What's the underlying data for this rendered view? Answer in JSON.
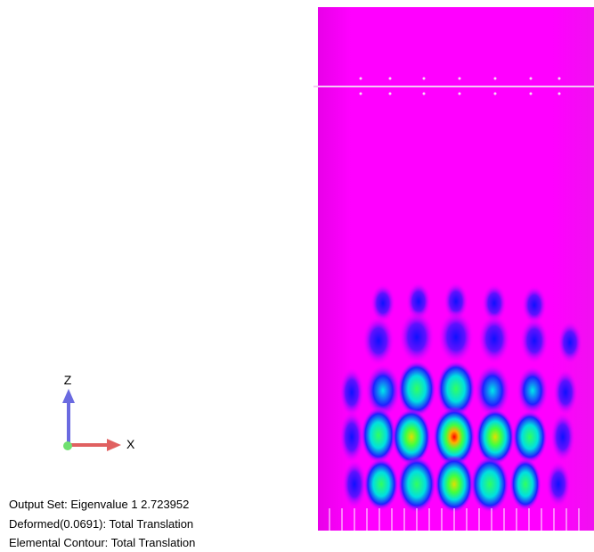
{
  "triad": {
    "z_label": "Z",
    "x_label": "X"
  },
  "info": [
    "Output Set: Eigenvalue 1 2.723952",
    "Deformed(0.0691): Total Translation",
    "Elemental Contour: Total Translation"
  ]
}
